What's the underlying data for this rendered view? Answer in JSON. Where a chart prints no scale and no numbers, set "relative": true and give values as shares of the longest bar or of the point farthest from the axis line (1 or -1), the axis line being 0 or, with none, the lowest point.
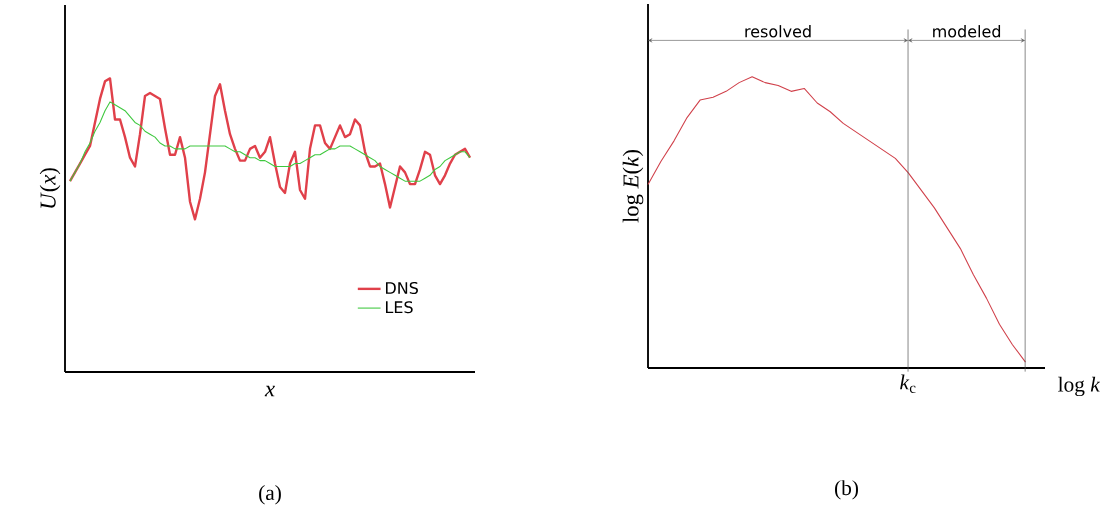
{
  "chart_data": [
    {
      "type": "line",
      "xlabel": "*x*",
      "ylabel": "*U*(*x*)",
      "relative": true,
      "legend": "bottom right",
      "annotations": [
        "(a)"
      ],
      "categories": [
        null,
        null,
        null,
        null,
        null,
        null,
        null,
        null,
        null,
        null,
        null,
        null,
        null,
        null,
        null,
        null,
        null,
        null,
        null,
        null,
        null,
        null,
        null,
        null,
        null,
        null,
        null,
        null,
        null,
        null,
        null,
        null,
        null,
        null,
        null,
        null,
        null,
        null,
        null,
        null,
        null,
        null,
        null,
        null,
        null,
        null,
        null,
        null,
        null,
        null,
        null,
        null,
        null,
        null,
        null,
        null,
        null,
        null,
        null,
        null,
        null,
        null,
        null,
        null,
        null,
        null,
        null,
        null,
        null,
        null,
        null,
        null,
        null,
        null,
        null,
        null,
        null,
        null,
        null,
        null,
        null
      ],
      "series": [
        {
          "name": "DNS",
          "color": "#e0404a",
          "values": [
            0.65,
            0.68,
            0.71,
            0.74,
            0.77,
            0.85,
            0.93,
            0.99,
            1,
            0.86,
            0.86,
            0.8,
            0.73,
            0.7,
            0.81,
            0.94,
            0.95,
            0.94,
            0.93,
            0.83,
            0.74,
            0.74,
            0.8,
            0.73,
            0.58,
            0.52,
            0.59,
            0.68,
            0.81,
            0.94,
            0.98,
            0.89,
            0.81,
            0.76,
            0.72,
            0.72,
            0.76,
            0.77,
            0.73,
            0.75,
            0.8,
            0.71,
            0.63,
            0.61,
            0.71,
            0.75,
            0.62,
            0.59,
            0.76,
            0.84,
            0.84,
            0.78,
            0.76,
            0.8,
            0.84,
            0.8,
            0.81,
            0.86,
            0.84,
            0.75,
            0.7,
            0.7,
            0.71,
            0.64,
            0.56,
            0.63,
            0.7,
            0.68,
            0.64,
            0.64,
            0.69,
            0.75,
            0.74,
            0.67,
            0.64,
            0.67,
            0.71,
            0.74,
            0.75,
            0.76,
            0.73
          ]
        },
        {
          "name": "LES",
          "color": "#3ec83e",
          "values": [
            0.65,
            0.68,
            0.71,
            0.75,
            0.78,
            0.82,
            0.85,
            0.89,
            0.92,
            0.91,
            0.9,
            0.89,
            0.87,
            0.85,
            0.84,
            0.82,
            0.81,
            0.8,
            0.78,
            0.77,
            0.77,
            0.76,
            0.76,
            0.76,
            0.77,
            0.77,
            0.77,
            0.77,
            0.77,
            0.77,
            0.77,
            0.77,
            0.76,
            0.75,
            0.75,
            0.74,
            0.73,
            0.73,
            0.72,
            0.72,
            0.71,
            0.7,
            0.7,
            0.7,
            0.7,
            0.71,
            0.71,
            0.72,
            0.73,
            0.74,
            0.74,
            0.75,
            0.76,
            0.76,
            0.77,
            0.77,
            0.77,
            0.76,
            0.75,
            0.74,
            0.73,
            0.72,
            0.7,
            0.69,
            0.68,
            0.67,
            0.66,
            0.65,
            0.65,
            0.65,
            0.65,
            0.66,
            0.67,
            0.69,
            0.7,
            0.72,
            0.73,
            0.74,
            0.75,
            0.75,
            0.73
          ]
        }
      ]
    },
    {
      "type": "line",
      "xlabel": "log *k*",
      "ylabel": "log *E*(*k*)",
      "relative": true,
      "annotations": [
        "(b)",
        "*k*$_{c}$",
        "resolved",
        "modeled"
      ],
      "categories": [
        null,
        null,
        null,
        null,
        null,
        null,
        null,
        null,
        null,
        null,
        null,
        null,
        null,
        null,
        null,
        null,
        null,
        null,
        null,
        null,
        null,
        null,
        null,
        null,
        null,
        null,
        null,
        null,
        null,
        null
      ],
      "series": [
        {
          "color": "#d0404a",
          "values": [
            0.63,
            0.71,
            0.78,
            0.86,
            0.92,
            0.93,
            0.95,
            0.98,
            1,
            0.98,
            0.97,
            0.95,
            0.96,
            0.91,
            0.88,
            0.84,
            0.81,
            0.78,
            0.75,
            0.72,
            0.67,
            0.61,
            0.55,
            0.48,
            0.41,
            0.32,
            0.24,
            0.15,
            0.08,
            0.02
          ]
        }
      ]
    }
  ]
}
